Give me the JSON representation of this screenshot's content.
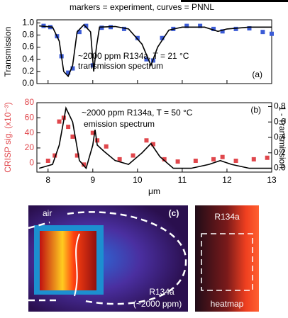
{
  "header": "markers = experiment, curves = PNNL",
  "chart_data": [
    {
      "type": "scatter",
      "ylabel": "Transmission",
      "annotations": [
        "~2000 ppm R134a, T = 21 °C",
        "transmission spectrum",
        "(a)"
      ],
      "xlim": [
        7.75,
        13
      ],
      "xticks": [
        8,
        9,
        10,
        11,
        12,
        13
      ],
      "ylim": [
        0,
        1.05
      ],
      "yticks": [
        {
          "value": 0,
          "label": "0.0"
        },
        {
          "value": 0.2,
          "label": "0.2"
        },
        {
          "value": 0.4,
          "label": "0.4"
        },
        {
          "value": 0.6,
          "label": "0.6"
        },
        {
          "value": 0.8,
          "label": "0.8"
        },
        {
          "value": 1,
          "label": "1.0"
        }
      ],
      "series": [
        {
          "mode": "markers",
          "color": "#3b5bd6",
          "x": [
            7.9,
            8.05,
            8.2,
            8.3,
            8.45,
            8.55,
            8.7,
            8.85,
            9.0,
            9.2,
            9.4,
            9.7,
            10.0,
            10.2,
            10.35,
            10.55,
            10.8,
            11.1,
            11.4,
            11.7,
            11.9,
            12.2,
            12.5,
            12.8,
            13.0
          ],
          "values": [
            0.95,
            0.93,
            0.78,
            0.45,
            0.18,
            0.25,
            0.85,
            0.95,
            0.3,
            0.92,
            0.93,
            0.9,
            0.75,
            0.4,
            0.38,
            0.75,
            0.9,
            0.95,
            0.95,
            0.9,
            0.86,
            0.9,
            0.91,
            0.85,
            0.82
          ]
        },
        {
          "mode": "lines",
          "color": "#000000",
          "x": [
            7.8,
            8.1,
            8.25,
            8.35,
            8.45,
            8.55,
            8.65,
            8.8,
            8.95,
            9.02,
            9.08,
            9.15,
            9.5,
            9.8,
            10.1,
            10.3,
            10.45,
            10.7,
            11.0,
            11.5,
            11.8,
            12.0,
            12.5,
            13.0
          ],
          "values": [
            0.95,
            0.93,
            0.7,
            0.2,
            0.12,
            0.3,
            0.85,
            0.97,
            0.85,
            0.2,
            0.6,
            0.93,
            0.94,
            0.9,
            0.65,
            0.3,
            0.6,
            0.88,
            0.93,
            0.93,
            0.86,
            0.9,
            0.93,
            0.93
          ]
        }
      ]
    },
    {
      "type": "scatter",
      "ylabel": "CRISP sig. (x10⁻³)",
      "y2label": "1 - Transmission",
      "xlabel": "μm",
      "annotations": [
        "~2000 ppm R134a, T = 50 °C",
        "emission spectrum",
        "(b)"
      ],
      "xlim": [
        7.75,
        13
      ],
      "xticks": [
        8,
        9,
        10,
        11,
        12,
        13
      ],
      "ylim": [
        -12,
        80
      ],
      "yticks": [
        0,
        20,
        40,
        60,
        80
      ],
      "y2lim": [
        -0.05,
        0.85
      ],
      "y2ticks": [
        {
          "value": 0,
          "label": "0.0"
        },
        {
          "value": 0.2,
          "label": "0.2"
        },
        {
          "value": 0.4,
          "label": "0.4"
        },
        {
          "value": 0.6,
          "label": "0.6"
        },
        {
          "value": 0.8,
          "label": "0.8"
        }
      ],
      "series": [
        {
          "mode": "markers",
          "color": "#e0474c",
          "x": [
            8.0,
            8.15,
            8.25,
            8.35,
            8.45,
            8.55,
            8.65,
            8.8,
            9.0,
            9.1,
            9.3,
            9.6,
            9.9,
            10.2,
            10.35,
            10.6,
            10.9,
            11.3,
            11.7,
            11.9,
            12.2,
            12.6,
            12.9
          ],
          "values": [
            3,
            10,
            55,
            60,
            48,
            35,
            10,
            -2,
            40,
            30,
            22,
            5,
            10,
            30,
            25,
            5,
            2,
            3,
            5,
            8,
            3,
            5,
            7
          ]
        },
        {
          "mode": "lines",
          "color": "#000000",
          "axis": "y2",
          "x": [
            7.8,
            8.1,
            8.25,
            8.4,
            8.55,
            8.7,
            8.85,
            9.0,
            9.05,
            9.1,
            9.25,
            9.5,
            9.8,
            10.1,
            10.3,
            10.5,
            10.8,
            11.2,
            11.6,
            11.85,
            12.1,
            12.5,
            13.0
          ],
          "values": [
            0.0,
            0.05,
            0.3,
            0.78,
            0.6,
            0.1,
            0.0,
            0.3,
            0.5,
            0.3,
            0.22,
            0.1,
            0.05,
            0.2,
            0.32,
            0.15,
            0.0,
            0.0,
            0.05,
            0.1,
            0.05,
            0.0,
            0.0
          ]
        }
      ]
    }
  ],
  "panel_c": {
    "label": "(c)",
    "left": [
      "air",
      "R134a",
      "(~2000 ppm)"
    ],
    "right": [
      "R134a",
      "heatmap"
    ]
  }
}
